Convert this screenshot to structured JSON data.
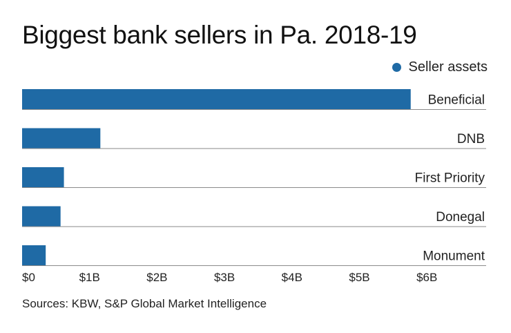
{
  "chart_data": {
    "type": "bar",
    "orientation": "horizontal",
    "title": "Biggest bank sellers in Pa. 2018-19",
    "categories": [
      "Beneficial",
      "DNB",
      "First Priority",
      "Donegal",
      "Monument"
    ],
    "series": [
      {
        "name": "Seller assets",
        "values": [
          5.76,
          1.16,
          0.62,
          0.57,
          0.35
        ]
      }
    ],
    "x_ticks": [
      "$0",
      "$1B",
      "$2B",
      "$3B",
      "$4B",
      "$5B",
      "$6B"
    ],
    "x_tick_values": [
      0,
      1,
      2,
      3,
      4,
      5,
      6
    ],
    "xlim": [
      0,
      7
    ],
    "xlabel": "",
    "ylabel": "",
    "legend_position": "top-right",
    "grid": false,
    "source": "Sources: KBW, S&P Global Market Intelligence"
  },
  "colors": {
    "bar": "#1f6aa5",
    "baseline": "#8a8a8a",
    "text": "#222222"
  }
}
